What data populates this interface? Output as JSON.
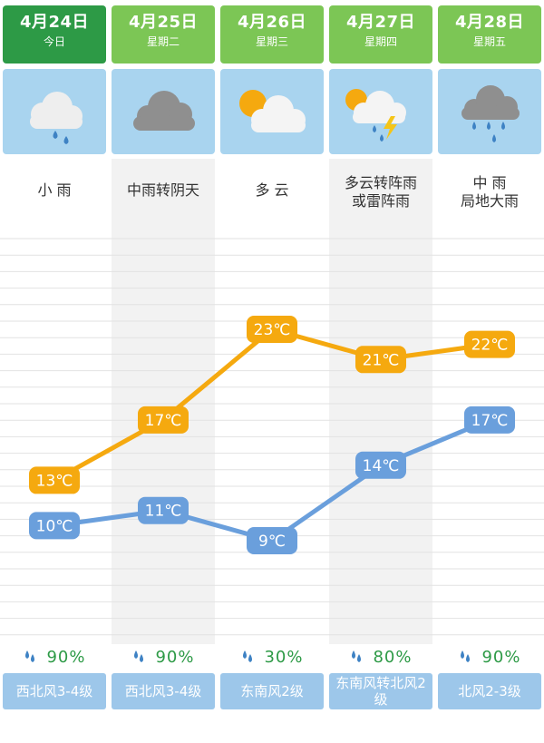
{
  "days": [
    {
      "date": "4月24日",
      "weekday": "今日",
      "icon": "cloud-rain-icon",
      "condition_line1": "小 雨",
      "condition_line2": "",
      "high": "13℃",
      "low": "10℃",
      "rain_prob": "90%",
      "wind": "西北风3-4级",
      "header_color": "#2d9a46"
    },
    {
      "date": "4月25日",
      "weekday": "星期二",
      "icon": "overcast-icon",
      "condition_line1": "中雨转阴天",
      "condition_line2": "",
      "high": "17℃",
      "low": "11℃",
      "rain_prob": "90%",
      "wind": "西北风3-4级",
      "header_color": "#7cc655"
    },
    {
      "date": "4月26日",
      "weekday": "星期三",
      "icon": "partly-cloudy-icon",
      "condition_line1": "多 云",
      "condition_line2": "",
      "high": "23℃",
      "low": "9℃",
      "rain_prob": "30%",
      "wind": "东南风2级",
      "header_color": "#7cc655"
    },
    {
      "date": "4月27日",
      "weekday": "星期四",
      "icon": "thunder-shower-icon",
      "condition_line1": "多云转阵雨",
      "condition_line2": "或雷阵雨",
      "high": "21℃",
      "low": "14℃",
      "rain_prob": "80%",
      "wind": "东南风转北风2级",
      "header_color": "#7cc655"
    },
    {
      "date": "4月28日",
      "weekday": "星期五",
      "icon": "heavy-rain-icon",
      "condition_line1": "中 雨",
      "condition_line2": "局地大雨",
      "high": "22℃",
      "low": "17℃",
      "rain_prob": "90%",
      "wind": "北风2-3级",
      "header_color": "#7cc655"
    }
  ],
  "chart_data": {
    "type": "line",
    "categories": [
      "4月24日",
      "4月25日",
      "4月26日",
      "4月27日",
      "4月28日"
    ],
    "series": [
      {
        "values": [
          13,
          17,
          23,
          21,
          22
        ],
        "color": "#f5a90f"
      },
      {
        "values": [
          10,
          11,
          9,
          14,
          17
        ],
        "color": "#6a9fdc"
      }
    ],
    "unit": "℃",
    "grid": true
  },
  "colors": {
    "rain_text": "#2d9a46",
    "drop": "#3e82c4",
    "wind_bg": "#9dc7ea",
    "icon_bg": "#a9d4ef"
  }
}
